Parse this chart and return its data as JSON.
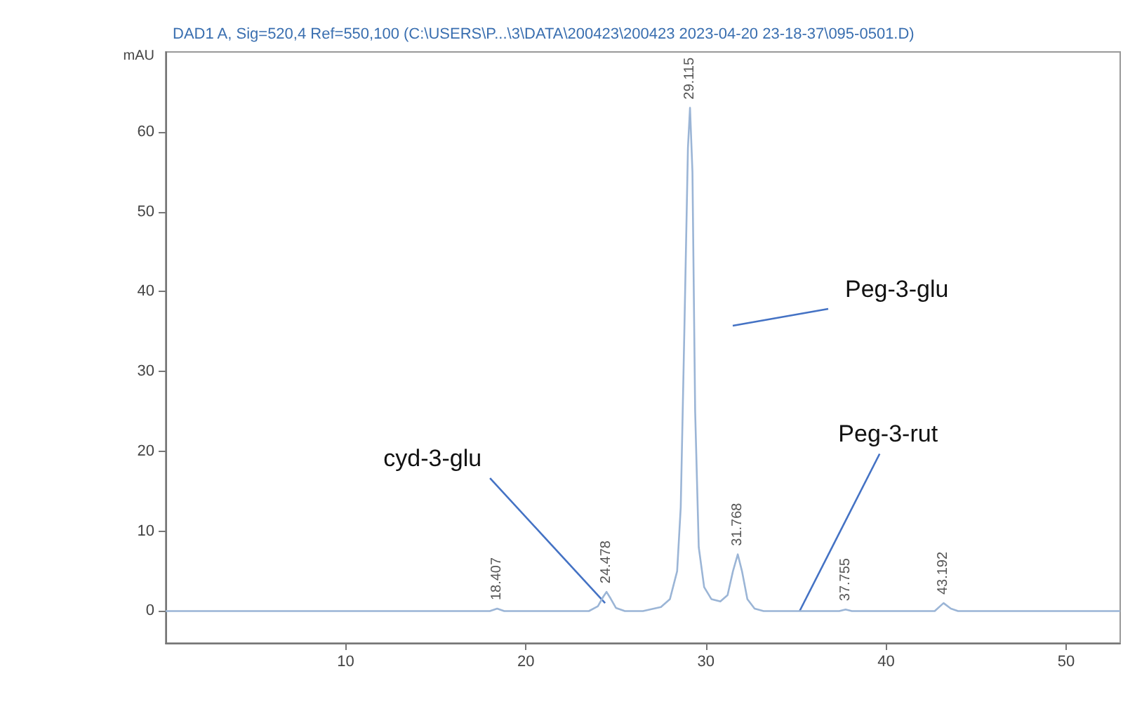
{
  "chart_data": {
    "type": "line",
    "title": "DAD1 A, Sig=520,4 Ref=550,100 (C:\\USERS\\P...\\3\\DATA\\200423\\200423 2023-04-20 23-18-37\\095-0501.D)",
    "ylabel": "mAU",
    "x": [
      0,
      18.0,
      18.407,
      18.8,
      23.5,
      24.0,
      24.3,
      24.478,
      24.7,
      25.0,
      25.5,
      26.5,
      27.5,
      28.0,
      28.4,
      28.6,
      28.8,
      29.0,
      29.115,
      29.25,
      29.4,
      29.6,
      29.9,
      30.3,
      30.8,
      31.2,
      31.5,
      31.768,
      32.0,
      32.3,
      32.7,
      33.2,
      37.4,
      37.755,
      38.1,
      42.7,
      43.192,
      43.6,
      44.0,
      53
    ],
    "series": [
      {
        "color": "#9bb5d6",
        "values": [
          0,
          0,
          0.3,
          0,
          0,
          0.6,
          1.8,
          2.4,
          1.6,
          0.4,
          0,
          0,
          0.5,
          1.5,
          5,
          13,
          35,
          58,
          63,
          55,
          25,
          8,
          3,
          1.5,
          1.2,
          2,
          5,
          7.1,
          5,
          1.5,
          0.3,
          0,
          0,
          0.2,
          0,
          0,
          1,
          0.3,
          0,
          0
        ]
      }
    ],
    "xlim": [
      0,
      53
    ],
    "xticks": [
      10,
      20,
      30,
      40,
      50
    ],
    "ylim": [
      -4,
      70
    ],
    "yticks": [
      0,
      10,
      20,
      30,
      40,
      50,
      60
    ],
    "grid": false,
    "marker": "none",
    "line_style": "solid",
    "annotations": [
      {
        "text": "18.407",
        "x": 18.407,
        "y": 0.3
      },
      {
        "text": "24.478",
        "x": 24.478,
        "y": 2.4
      },
      {
        "text": "29.115",
        "x": 29.115,
        "y": 63
      },
      {
        "text": "31.768",
        "x": 31.768,
        "y": 7.1
      },
      {
        "text": "37.755",
        "x": 37.755,
        "y": 0.2
      },
      {
        "text": "43.192",
        "x": 43.192,
        "y": 1
      },
      {
        "text": "cyd-3-glu",
        "x": 24.4,
        "y": 1
      },
      "Peg-3-glu",
      {
        "text": "Peg-3-rut",
        "x": 35.2,
        "y": 0
      }
    ]
  }
}
